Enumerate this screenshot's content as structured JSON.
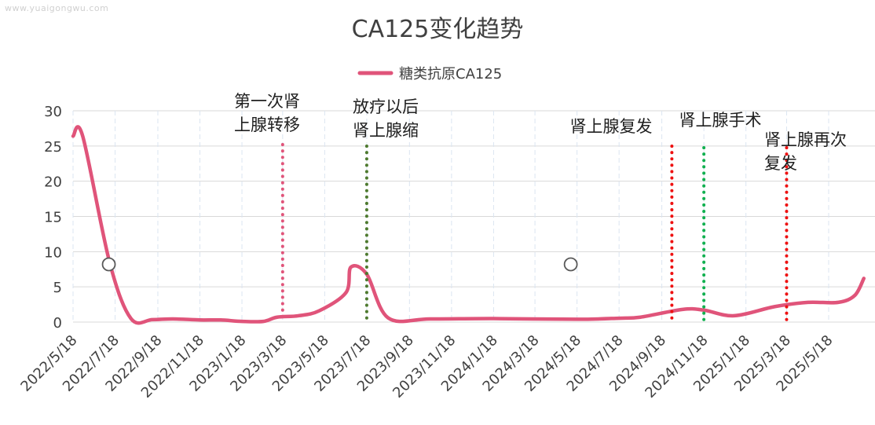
{
  "watermark": "www.yuaigongwu.com",
  "chart_data": {
    "type": "line",
    "title": "CA125变化趋势",
    "xlabel": "",
    "ylabel": "",
    "ylim": [
      0,
      30
    ],
    "yticks": [
      0,
      5,
      10,
      15,
      20,
      25,
      30
    ],
    "x_tick_labels": [
      "2022/5/18",
      "2022/7/18",
      "2022/9/18",
      "2022/11/18",
      "2023/1/18",
      "2023/3/18",
      "2023/5/18",
      "2023/7/18",
      "2023/9/18",
      "2023/11/18",
      "2024/1/18",
      "2024/3/18",
      "2024/5/18",
      "2024/7/18",
      "2024/9/18",
      "2024/11/18",
      "2025/1/18",
      "2025/3/18",
      "2025/5/18"
    ],
    "grid": true,
    "legend_position": "top",
    "series": [
      {
        "name": "糖类抗原CA125",
        "color": "#e0547a",
        "points": [
          {
            "x": "2022/5/18",
            "y": 26.4
          },
          {
            "x": "2022/6/1",
            "y": 26.4
          },
          {
            "x": "2022/7/10",
            "y": 8.5
          },
          {
            "x": "2022/8/10",
            "y": 0.5
          },
          {
            "x": "2022/9/10",
            "y": 0.35
          },
          {
            "x": "2022/10/10",
            "y": 0.45
          },
          {
            "x": "2022/11/18",
            "y": 0.3
          },
          {
            "x": "2022/12/18",
            "y": 0.3
          },
          {
            "x": "2023/1/18",
            "y": 0.1
          },
          {
            "x": "2023/2/18",
            "y": 0.1
          },
          {
            "x": "2023/3/10",
            "y": 0.7
          },
          {
            "x": "2023/4/10",
            "y": 0.9
          },
          {
            "x": "2023/5/10",
            "y": 1.6
          },
          {
            "x": "2023/6/18",
            "y": 4.2
          },
          {
            "x": "2023/6/25",
            "y": 7.8
          },
          {
            "x": "2023/7/18",
            "y": 6.8
          },
          {
            "x": "2023/8/18",
            "y": 0.6
          },
          {
            "x": "2023/10/18",
            "y": 0.45
          },
          {
            "x": "2024/1/18",
            "y": 0.5
          },
          {
            "x": "2024/5/18",
            "y": 0.4
          },
          {
            "x": "2024/7/18",
            "y": 0.55
          },
          {
            "x": "2024/8/18",
            "y": 0.7
          },
          {
            "x": "2024/10/18",
            "y": 1.8
          },
          {
            "x": "2024/11/18",
            "y": 1.7
          },
          {
            "x": "2025/1/1",
            "y": 0.9
          },
          {
            "x": "2025/3/1",
            "y": 2.2
          },
          {
            "x": "2025/4/18",
            "y": 2.8
          },
          {
            "x": "2025/6/1",
            "y": 2.8
          },
          {
            "x": "2025/6/25",
            "y": 3.8
          },
          {
            "x": "2025/7/8",
            "y": 6.2
          }
        ]
      }
    ],
    "markers": [
      {
        "x": "2022/7/18",
        "y": 8.2
      },
      {
        "x": "2024/5/18",
        "y": 8.2
      }
    ],
    "annotations": [
      {
        "lines": [
          "第一次肾",
          "上腺转移"
        ],
        "x": "2023/3/18",
        "color": "#e0547a"
      },
      {
        "lines": [
          "放疗以后",
          "肾上腺缩"
        ],
        "x": "2023/7/18",
        "color": "#4e7a2f"
      },
      {
        "lines": [
          "肾上腺复发"
        ],
        "x": "2024/8/18",
        "color": "#ee1111"
      },
      {
        "lines": [
          "肾上腺手术"
        ],
        "x": "2024/11/18",
        "color": "#11b050"
      },
      {
        "lines": [
          "肾上腺再次",
          "复发"
        ],
        "x": "2025/3/18",
        "color": "#ee1111"
      }
    ]
  }
}
